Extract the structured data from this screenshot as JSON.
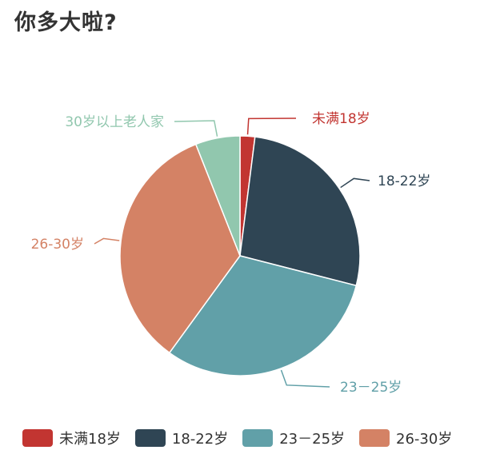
{
  "chart_data": {
    "type": "pie",
    "title": "你多大啦?",
    "slices": [
      {
        "label": "未满18岁",
        "value": 2,
        "color": "#c23531"
      },
      {
        "label": "18-22岁",
        "value": 27,
        "color": "#2f4554"
      },
      {
        "label": "23－25岁",
        "value": 31,
        "color": "#61a0a8"
      },
      {
        "label": "26-30岁",
        "value": 34,
        "color": "#d48265"
      },
      {
        "label": "30岁以上老人家",
        "value": 6,
        "color": "#91c7ae"
      }
    ],
    "legend": {
      "placement": "bottom",
      "entries": [
        "未满18岁",
        "18-22岁",
        "23－25岁",
        "26-30岁"
      ]
    }
  }
}
